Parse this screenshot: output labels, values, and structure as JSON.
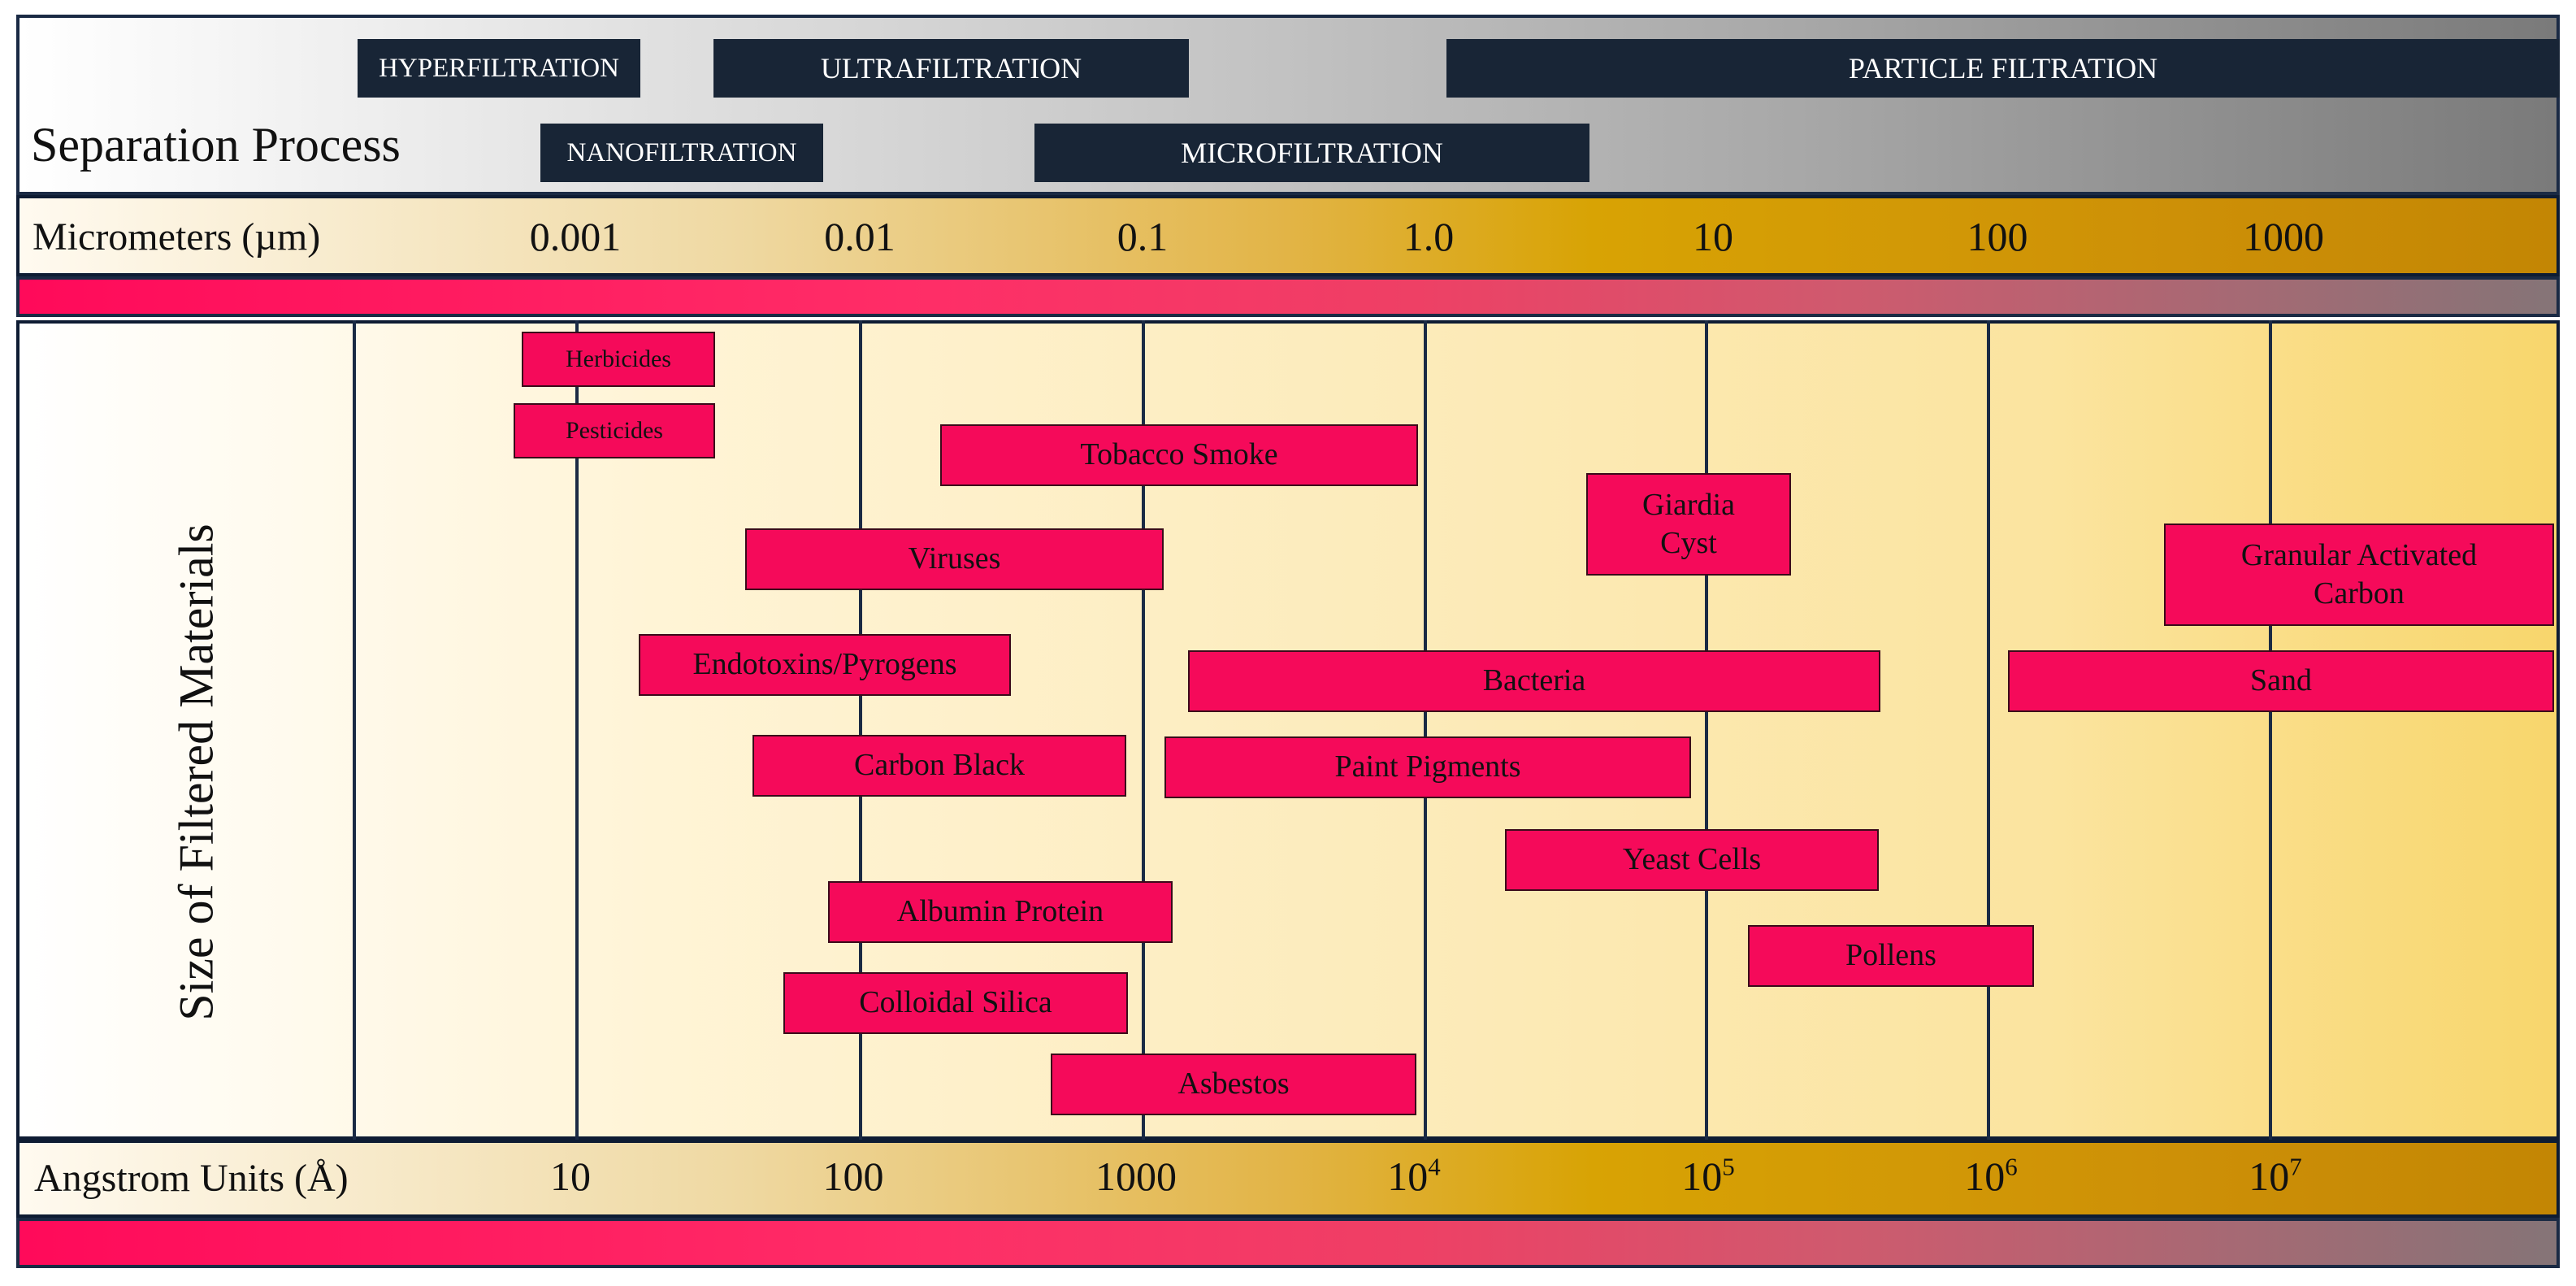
{
  "separation_process": {
    "title": "Separation Process",
    "processes": [
      {
        "label": "HYPERFILTRATION"
      },
      {
        "label": "ULTRAFILTRATION"
      },
      {
        "label": "PARTICLE FILTRATION"
      },
      {
        "label": "NANOFILTRATION"
      },
      {
        "label": "MICROFILTRATION"
      }
    ]
  },
  "micrometers": {
    "label": "Micrometers (µm)",
    "ticks": [
      "0.001",
      "0.01",
      "0.1",
      "1.0",
      "10",
      "100",
      "1000"
    ]
  },
  "y_axis_label": "Size of Filtered Materials",
  "materials": [
    {
      "label": "Herbicides"
    },
    {
      "label": "Pesticides"
    },
    {
      "label": "Tobacco Smoke"
    },
    {
      "label": "Giardia\nCyst"
    },
    {
      "label": "Granular Activated\nCarbon"
    },
    {
      "label": "Viruses"
    },
    {
      "label": "Endotoxins/Pyrogens"
    },
    {
      "label": "Bacteria"
    },
    {
      "label": "Sand"
    },
    {
      "label": "Carbon Black"
    },
    {
      "label": "Paint Pigments"
    },
    {
      "label": "Yeast Cells"
    },
    {
      "label": "Albumin Protein"
    },
    {
      "label": "Pollens"
    },
    {
      "label": "Colloidal Silica"
    },
    {
      "label": "Asbestos"
    }
  ],
  "angstrom": {
    "label": "Angstrom Units (Å)",
    "ticks": [
      {
        "base": "10",
        "exp": ""
      },
      {
        "base": "100",
        "exp": ""
      },
      {
        "base": "1000",
        "exp": ""
      },
      {
        "base": "10",
        "exp": "4"
      },
      {
        "base": "10",
        "exp": "5"
      },
      {
        "base": "10",
        "exp": "6"
      },
      {
        "base": "10",
        "exp": "7"
      }
    ]
  },
  "colors": {
    "process_box": "#182536",
    "material_box": "#f50a5a",
    "border": "#0e1c33",
    "scale_gold": "#d8a304"
  }
}
